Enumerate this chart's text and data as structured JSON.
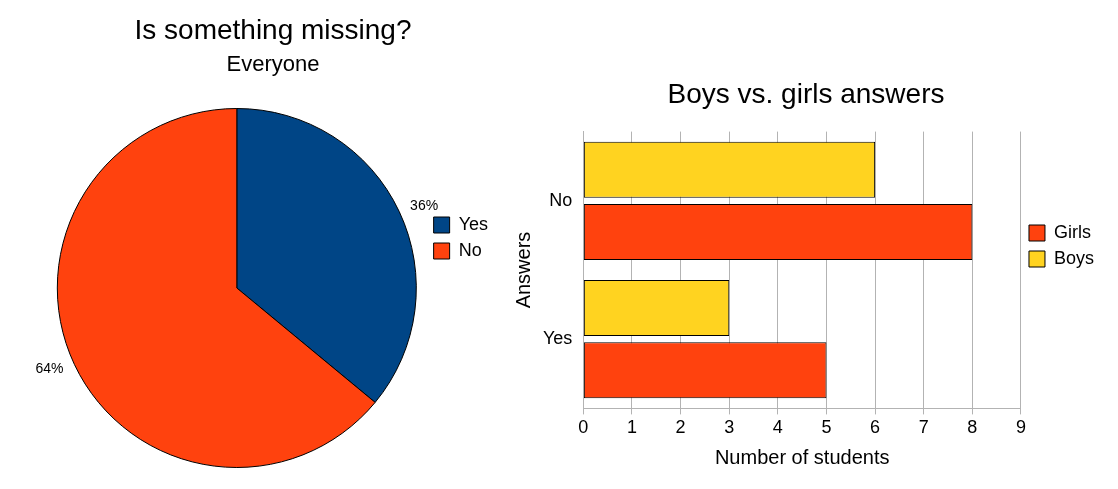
{
  "chart_data": [
    {
      "type": "pie",
      "title": "Is something missing?",
      "subtitle": "Everyone",
      "categories": [
        "Yes",
        "No"
      ],
      "values": [
        36,
        64
      ],
      "colors": [
        "#004586",
        "#ff420e"
      ],
      "value_labels": [
        "36%",
        "64%"
      ],
      "legend": "right"
    },
    {
      "type": "bar",
      "orientation": "horizontal",
      "title": "Boys vs. girls answers",
      "xlabel": "Number of students",
      "ylabel": "Answers",
      "categories": [
        "No",
        "Yes"
      ],
      "series": [
        {
          "name": "Girls",
          "color": "#ff420e",
          "values": [
            8,
            5
          ]
        },
        {
          "name": "Boys",
          "color": "#ffd320",
          "values": [
            6,
            3
          ]
        }
      ],
      "xlim": [
        0,
        9
      ],
      "xticks": [
        0,
        1,
        2,
        3,
        4,
        5,
        6,
        7,
        8,
        9
      ],
      "grid": "x",
      "legend": "right"
    }
  ]
}
